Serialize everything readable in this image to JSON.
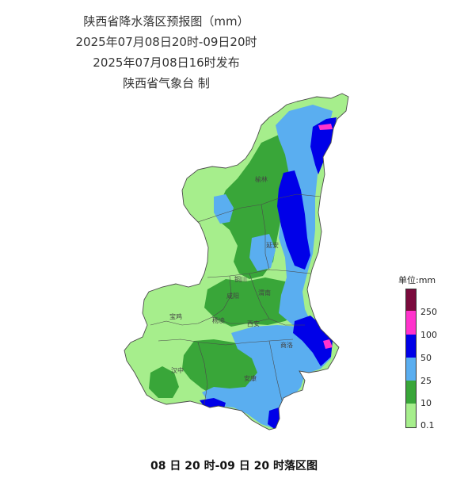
{
  "header": {
    "title": "陕西省降水落区预报图（mm）",
    "valid_period": "2025年07月08日20时-09日20时",
    "issue_time": "2025年07月08日16时发布",
    "issuer": "陕西省气象台  制"
  },
  "legend": {
    "title": "单位:mm",
    "levels": [
      {
        "label": "",
        "color": "#7a0a3c"
      },
      {
        "label": "250",
        "color": "#ff33cc"
      },
      {
        "label": "100",
        "color": "#0000e8"
      },
      {
        "label": "50",
        "color": "#5aaef0"
      },
      {
        "label": "25",
        "color": "#39a639"
      },
      {
        "label": "10",
        "color": "#a6ee8c"
      },
      {
        "label": "0.1",
        "color": ""
      }
    ]
  },
  "map": {
    "cities": [
      {
        "name": "榆林"
      },
      {
        "name": "延安"
      },
      {
        "name": "铜川"
      },
      {
        "name": "咸阳"
      },
      {
        "name": "渭南"
      },
      {
        "name": "宝鸡"
      },
      {
        "name": "杨凌"
      },
      {
        "name": "西安"
      },
      {
        "name": "商洛"
      },
      {
        "name": "汉中"
      },
      {
        "name": "安康"
      }
    ],
    "colors": {
      "light_green": "#a6ee8c",
      "green": "#39a639",
      "light_blue": "#5aaef0",
      "blue": "#0000e8",
      "magenta": "#ff33cc",
      "boundary": "#4a4a4a"
    }
  },
  "footer": {
    "caption": "08 日 20 时-09 日 20 时落区图"
  }
}
